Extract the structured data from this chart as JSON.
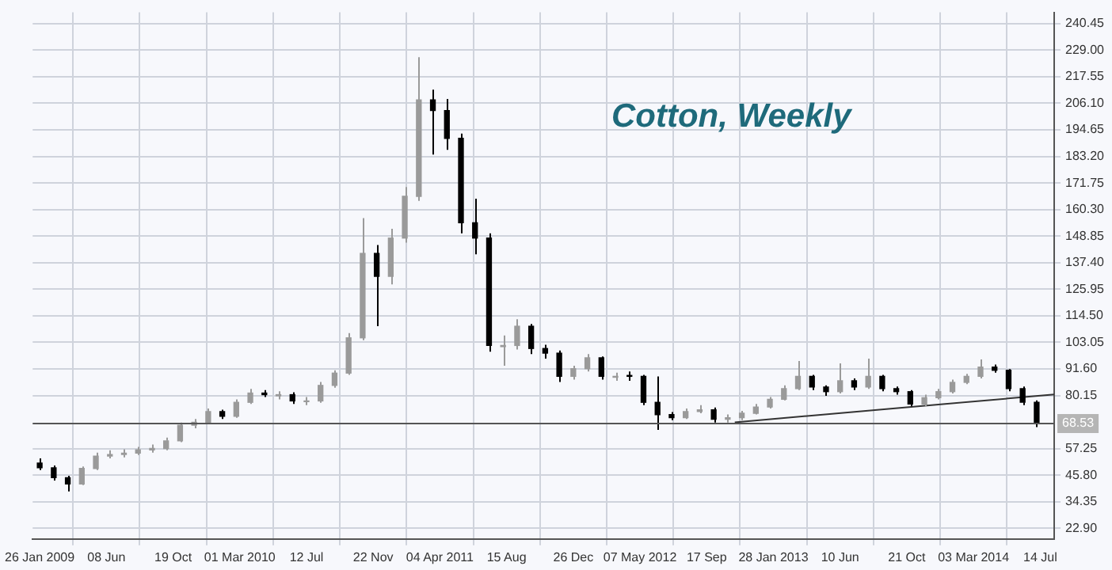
{
  "chart_data": {
    "type": "candlestick",
    "title": "Cotton, Weekly",
    "xlim": [
      "2009-01-12",
      "2014-08-11"
    ],
    "xticks": [
      {
        "value": "2009-01-26",
        "label": "26 Jan 2009"
      },
      {
        "value": "2009-06-08",
        "label": "08 Jun"
      },
      {
        "value": "2009-10-19",
        "label": "19 Oct"
      },
      {
        "value": "2010-03-01",
        "label": "01 Mar 2010"
      },
      {
        "value": "2010-07-12",
        "label": "12 Jul"
      },
      {
        "value": "2010-11-22",
        "label": "22 Nov"
      },
      {
        "value": "2011-04-04",
        "label": "04 Apr 2011"
      },
      {
        "value": "2011-08-15",
        "label": "15 Aug"
      },
      {
        "value": "2011-12-26",
        "label": "26 Dec"
      },
      {
        "value": "2012-05-07",
        "label": "07 May 2012"
      },
      {
        "value": "2012-09-17",
        "label": "17 Sep"
      },
      {
        "value": "2013-01-28",
        "label": "28 Jan 2013"
      },
      {
        "value": "2013-06-10",
        "label": "10 Jun"
      },
      {
        "value": "2013-10-21",
        "label": "21 Oct"
      },
      {
        "value": "2014-03-03",
        "label": "03 Mar 2014"
      },
      {
        "value": "2014-07-14",
        "label": "14 Jul"
      }
    ],
    "ylim": [
      18.3,
      245.3
    ],
    "yticks": [
      {
        "value": 22.9,
        "label": "22.90"
      },
      {
        "value": 34.35,
        "label": "34.35"
      },
      {
        "value": 45.8,
        "label": "45.80"
      },
      {
        "value": 57.25,
        "label": "57.25"
      },
      {
        "value": 80.15,
        "label": "80.15"
      },
      {
        "value": 91.6,
        "label": "91.60"
      },
      {
        "value": 103.05,
        "label": "103.05"
      },
      {
        "value": 114.5,
        "label": "114.50"
      },
      {
        "value": 125.95,
        "label": "125.95"
      },
      {
        "value": 137.4,
        "label": "137.40"
      },
      {
        "value": 148.85,
        "label": "148.85"
      },
      {
        "value": 160.3,
        "label": "160.30"
      },
      {
        "value": 171.75,
        "label": "171.75"
      },
      {
        "value": 183.2,
        "label": "183.20"
      },
      {
        "value": 194.65,
        "label": "194.65"
      },
      {
        "value": 206.1,
        "label": "206.10"
      },
      {
        "value": 217.55,
        "label": "217.55"
      },
      {
        "value": 229,
        "label": "229.00"
      },
      {
        "value": 240.45,
        "label": "240.45"
      }
    ],
    "grid": true,
    "ref_lines": [
      {
        "axis": "y",
        "value": 68.53,
        "label": "68.53",
        "color": "#555555"
      }
    ],
    "series": [
      {
        "colors": [
          "#000000",
          "#000000",
          "#000000",
          "#9a9a9a",
          "#9a9a9a",
          "#9a9a9a",
          "#9a9a9a",
          "#9a9a9a",
          "#9a9a9a",
          "#9a9a9a",
          "#9a9a9a",
          "#9a9a9a",
          "#9a9a9a",
          "#000000",
          "#9a9a9a",
          "#9a9a9a",
          "#000000",
          "#9a9a9a",
          "#000000",
          "#9a9a9a",
          "#9a9a9a",
          "#9a9a9a",
          "#9a9a9a",
          "#9a9a9a",
          "#000000",
          "#9a9a9a",
          "#9a9a9a",
          "#9a9a9a",
          "#000000",
          "#000000",
          "#000000",
          "#000000",
          "#000000",
          "#9a9a9a",
          "#9a9a9a",
          "#000000",
          "#000000",
          "#000000",
          "#9a9a9a",
          "#9a9a9a",
          "#000000",
          "#9a9a9a",
          "#000000",
          "#000000",
          "#000000",
          "#000000",
          "#9a9a9a",
          "#9a9a9a",
          "#000000",
          "#9a9a9a",
          "#9a9a9a",
          "#9a9a9a",
          "#9a9a9a",
          "#9a9a9a",
          "#9a9a9a",
          "#000000",
          "#000000",
          "#9a9a9a",
          "#000000",
          "#9a9a9a",
          "#000000",
          "#000000",
          "#000000",
          "#9a9a9a",
          "#9a9a9a",
          "#9a9a9a",
          "#9a9a9a",
          "#9a9a9a",
          "#000000",
          "#000000",
          "#000000",
          "#000000"
        ],
        "x": [
          "2009-01-26",
          "2009-02-23",
          "2009-03-23",
          "2009-04-20",
          "2009-05-18",
          "2009-06-15",
          "2009-07-13",
          "2009-08-10",
          "2009-09-07",
          "2009-10-05",
          "2009-11-02",
          "2009-11-30",
          "2009-12-28",
          "2010-01-25",
          "2010-02-22",
          "2010-03-22",
          "2010-04-19",
          "2010-05-17",
          "2010-06-14",
          "2010-07-12",
          "2010-08-09",
          "2010-09-06",
          "2010-10-04",
          "2010-11-01",
          "2010-11-29",
          "2010-12-27",
          "2011-01-24",
          "2011-02-21",
          "2011-03-21",
          "2011-04-18",
          "2011-05-16",
          "2011-06-13",
          "2011-07-11",
          "2011-08-08",
          "2011-09-05",
          "2011-10-03",
          "2011-10-31",
          "2011-11-28",
          "2011-12-26",
          "2012-01-23",
          "2012-02-20",
          "2012-03-19",
          "2012-04-16",
          "2012-05-14",
          "2012-06-11",
          "2012-07-09",
          "2012-08-06",
          "2012-09-03",
          "2012-10-01",
          "2012-10-29",
          "2012-11-26",
          "2012-12-24",
          "2013-01-21",
          "2013-02-18",
          "2013-03-18",
          "2013-04-15",
          "2013-05-13",
          "2013-06-10",
          "2013-07-08",
          "2013-08-05",
          "2013-09-02",
          "2013-09-30",
          "2013-10-28",
          "2013-11-25",
          "2013-12-23",
          "2014-01-20",
          "2014-02-17",
          "2014-03-17",
          "2014-04-14",
          "2014-05-12",
          "2014-06-09",
          "2014-07-07"
        ],
        "ohlc": [
          [
            51,
            53,
            48,
            49
          ],
          [
            49,
            50,
            43.5,
            44.7
          ],
          [
            44.7,
            45.5,
            38.8,
            42
          ],
          [
            42,
            49.5,
            41.5,
            48.7
          ],
          [
            48.7,
            55.5,
            48,
            54
          ],
          [
            54,
            56.5,
            53,
            54.7
          ],
          [
            54.7,
            57,
            53.5,
            55.3
          ],
          [
            55.3,
            58,
            54.5,
            56.7
          ],
          [
            56.7,
            59,
            55.5,
            57.3
          ],
          [
            57.3,
            62,
            56.5,
            60.6
          ],
          [
            60.6,
            68.5,
            60,
            67.3
          ],
          [
            67.3,
            70,
            66,
            68.6
          ],
          [
            68.6,
            74.5,
            68,
            73.2
          ],
          [
            73.2,
            74,
            70,
            71.2
          ],
          [
            71.2,
            78.5,
            70.5,
            77.2
          ],
          [
            77.2,
            83,
            76.5,
            81.2
          ],
          [
            81.2,
            82.5,
            79.5,
            80.5
          ],
          [
            80,
            82,
            78.5,
            80.5
          ],
          [
            80.5,
            81.5,
            76.5,
            77.8
          ],
          [
            77.5,
            79.5,
            76,
            77.8
          ],
          [
            77.8,
            86,
            77,
            84.5
          ],
          [
            84.5,
            91,
            83.5,
            89.8
          ],
          [
            89.8,
            107,
            89,
            105
          ],
          [
            105,
            156.6,
            104,
            141.4
          ],
          [
            141.4,
            145,
            110,
            131.5
          ],
          [
            131.5,
            152,
            128,
            148
          ],
          [
            148,
            170,
            146,
            166
          ],
          [
            166,
            226,
            164,
            207.6
          ],
          [
            207.6,
            212,
            184,
            203
          ],
          [
            203,
            208,
            186,
            191
          ],
          [
            191,
            193,
            150,
            154.6
          ],
          [
            154.6,
            165,
            141,
            148
          ],
          [
            148,
            150,
            99,
            101.7
          ],
          [
            101.2,
            106,
            93,
            101.7
          ],
          [
            101.7,
            113,
            100,
            110
          ],
          [
            110,
            111,
            98,
            100.4
          ],
          [
            100.4,
            102,
            96,
            98.4
          ],
          [
            98.4,
            99.5,
            86,
            88.4
          ],
          [
            88.4,
            93,
            87,
            91.7
          ],
          [
            91.7,
            98,
            90.5,
            96.4
          ],
          [
            96.4,
            97,
            87,
            88.4
          ],
          [
            88,
            90,
            86.5,
            88.4
          ],
          [
            88.8,
            90.5,
            86.5,
            88.4
          ],
          [
            88.4,
            89,
            76,
            77.2
          ],
          [
            77.2,
            88.4,
            65.3,
            71.9
          ],
          [
            71.9,
            73,
            69.5,
            70.6
          ],
          [
            70.6,
            74.5,
            70,
            73.2
          ],
          [
            73.2,
            76,
            72.5,
            74
          ],
          [
            74,
            75,
            68.5,
            69.9
          ],
          [
            69.9,
            72,
            68.5,
            70.6
          ],
          [
            70.6,
            73.5,
            69.5,
            72.5
          ],
          [
            72.5,
            76.5,
            72,
            75.2
          ],
          [
            75.2,
            79.5,
            74.5,
            78.5
          ],
          [
            78.5,
            84.5,
            78,
            83.1
          ],
          [
            83.1,
            95,
            82.5,
            88.4
          ],
          [
            88.4,
            89,
            82.5,
            83.8
          ],
          [
            83.8,
            84.5,
            80,
            81.8
          ],
          [
            81.8,
            94,
            81,
            86.5
          ],
          [
            86.5,
            87.5,
            82.5,
            83.8
          ],
          [
            83.8,
            96,
            83,
            88.4
          ],
          [
            88.4,
            89,
            82,
            83.1
          ],
          [
            83.1,
            84,
            80.5,
            81.8
          ],
          [
            81.8,
            82.5,
            75.5,
            76.5
          ],
          [
            76.5,
            80.5,
            75.5,
            79.2
          ],
          [
            79.2,
            83,
            78.5,
            81.8
          ],
          [
            81.8,
            87,
            81,
            85.8
          ],
          [
            85.8,
            89.5,
            85,
            88.4
          ],
          [
            88.4,
            95.7,
            87.5,
            92.4
          ],
          [
            92.4,
            93.5,
            90,
            91
          ],
          [
            91,
            91.5,
            82,
            83.1
          ],
          [
            83.1,
            84,
            76,
            77.2
          ],
          [
            77.2,
            78,
            66.5,
            68.53
          ]
        ]
      },
      {
        "type": "line",
        "color": "#333333",
        "x": [
          "2012-11-12",
          "2014-08-11"
        ],
        "values": [
          68.6,
          80.6
        ]
      }
    ]
  }
}
